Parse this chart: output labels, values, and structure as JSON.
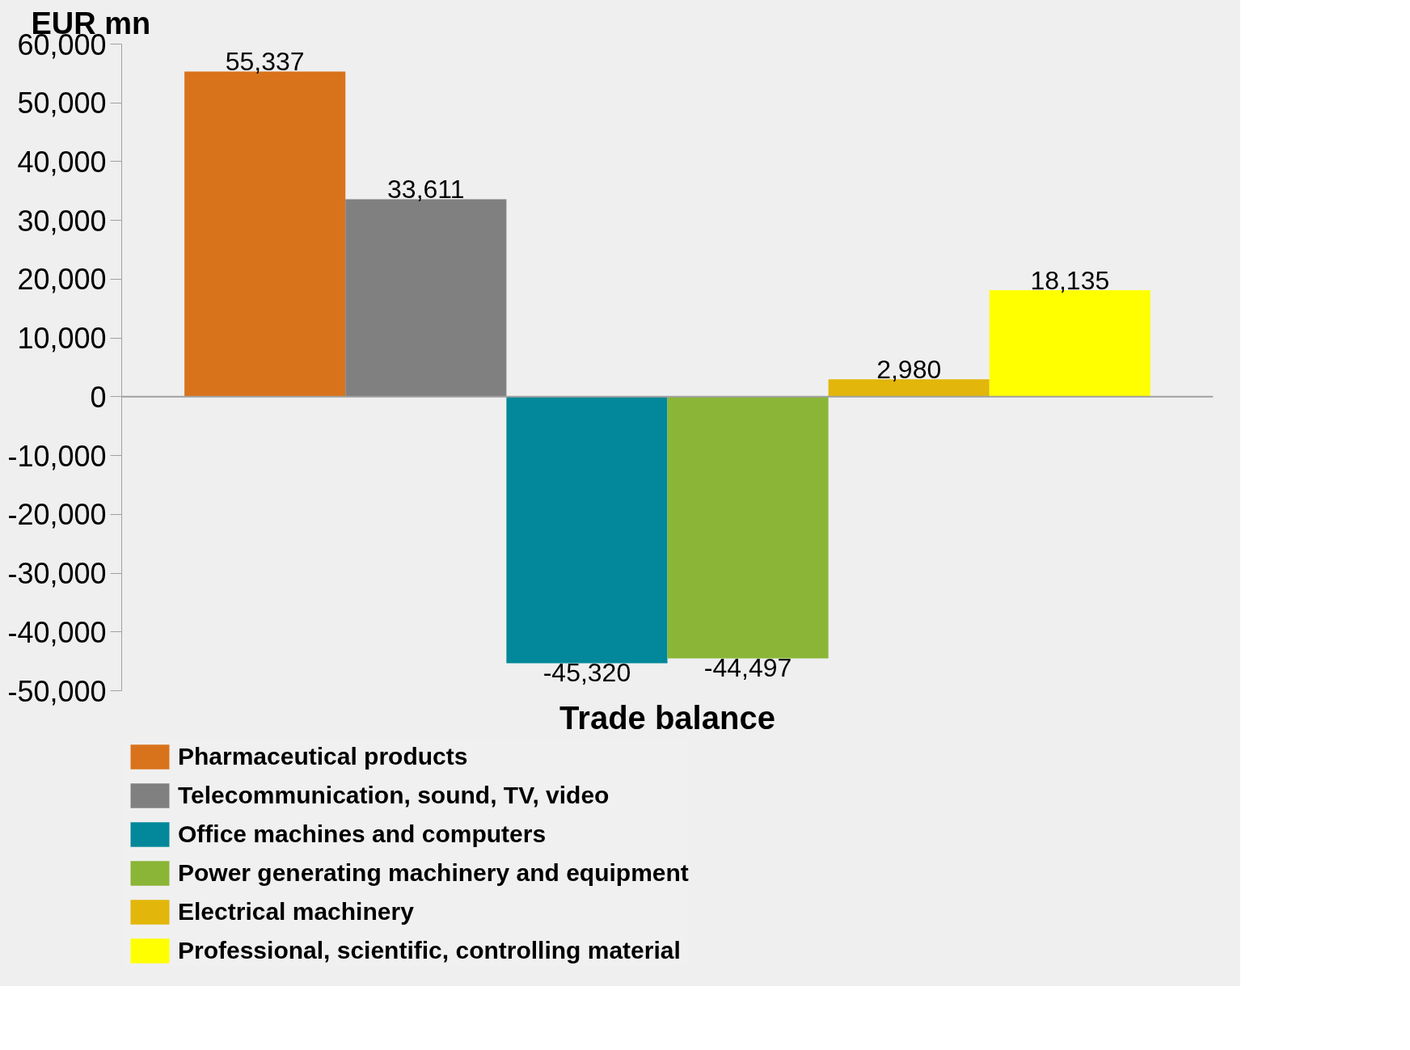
{
  "chart_data": {
    "type": "bar",
    "ylabel": "EUR mn",
    "categories": [
      "Trade balance"
    ],
    "series": [
      {
        "name": "Pharmaceutical products",
        "color": "#d9731b",
        "values": [
          55337
        ],
        "value_labels": [
          "55,337"
        ]
      },
      {
        "name": "Telecommunication, sound, TV, video",
        "color": "#808080",
        "values": [
          33611
        ],
        "value_labels": [
          "33,611"
        ]
      },
      {
        "name": "Office machines and computers",
        "color": "#02889a",
        "values": [
          -45320
        ],
        "value_labels": [
          "-45,320"
        ]
      },
      {
        "name": "Power generating machinery and equipment",
        "color": "#8ab536",
        "values": [
          -44497
        ],
        "value_labels": [
          "-44,497"
        ]
      },
      {
        "name": "Electrical machinery",
        "color": "#e2b60a",
        "values": [
          2980
        ],
        "value_labels": [
          "2,980"
        ]
      },
      {
        "name": "Professional, scientific, controlling material",
        "color": "#ffff00",
        "values": [
          18135
        ],
        "value_labels": [
          "18,135"
        ]
      }
    ],
    "ylim": [
      -50000,
      60000
    ],
    "yticks": [
      {
        "value": -50000,
        "label": "-50,000"
      },
      {
        "value": -40000,
        "label": "-40,000"
      },
      {
        "value": -30000,
        "label": "-30,000"
      },
      {
        "value": -20000,
        "label": "-20,000"
      },
      {
        "value": -10000,
        "label": "-10,000"
      },
      0,
      {
        "value": 10000,
        "label": "10,000"
      },
      {
        "value": 20000,
        "label": "20,000"
      },
      {
        "value": 30000,
        "label": "30,000"
      },
      {
        "value": 40000,
        "label": "40,000"
      },
      {
        "value": 50000,
        "label": "50,000"
      },
      {
        "value": 60000,
        "label": "60,000"
      }
    ],
    "legend": "bottom"
  }
}
